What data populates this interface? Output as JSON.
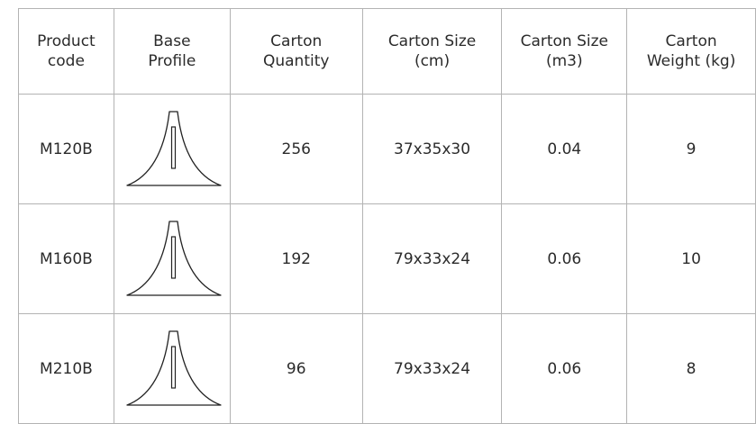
{
  "table": {
    "headers": [
      "Product\ncode",
      "Base\nProfile",
      "Carton\nQuantity",
      "Carton Size\n(cm)",
      "Carton Size\n(m3)",
      "Carton\nWeight (kg)"
    ],
    "rows": [
      {
        "code": "M120B",
        "profile_icon": "base-profile-icon",
        "quantity": "256",
        "size_cm": "37x35x30",
        "size_m3": "0.04",
        "weight": "9"
      },
      {
        "code": "M160B",
        "profile_icon": "base-profile-icon",
        "quantity": "192",
        "size_cm": "79x33x24",
        "size_m3": "0.06",
        "weight": "10"
      },
      {
        "code": "M210B",
        "profile_icon": "base-profile-icon",
        "quantity": "96",
        "size_cm": "79x33x24",
        "size_m3": "0.06",
        "weight": "8"
      }
    ]
  },
  "colors": {
    "border": "#b3b3b3",
    "text": "#2b2b2b"
  }
}
